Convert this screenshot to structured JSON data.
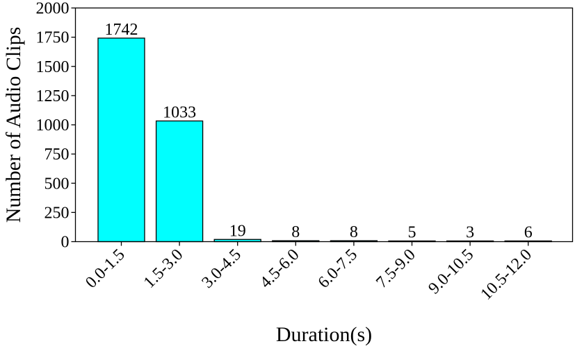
{
  "chart_data": {
    "type": "bar",
    "title": "",
    "xlabel": "Duration(s)",
    "ylabel": "Number of Audio Clips",
    "categories": [
      "0.0-1.5",
      "1.5-3.0",
      "3.0-4.5",
      "4.5-6.0",
      "6.0-7.5",
      "7.5-9.0",
      "9.0-10.5",
      "10.5-12.0"
    ],
    "values": [
      1742,
      1033,
      19,
      8,
      8,
      5,
      3,
      6
    ],
    "data_labels": [
      "1742",
      "1033",
      "19",
      "8",
      "8",
      "5",
      "3",
      "6"
    ],
    "ylim": [
      0,
      2000
    ],
    "yticks": [
      0,
      250,
      500,
      750,
      1000,
      1250,
      1500,
      1750,
      2000
    ],
    "ytick_labels": [
      "0",
      "250",
      "500",
      "750",
      "1000",
      "1250",
      "1500",
      "1750",
      "2000"
    ],
    "grid": false,
    "legend": null,
    "bar_color": "#00ffff",
    "bar_edge_color": "#000000",
    "xtick_rotation": 45
  }
}
